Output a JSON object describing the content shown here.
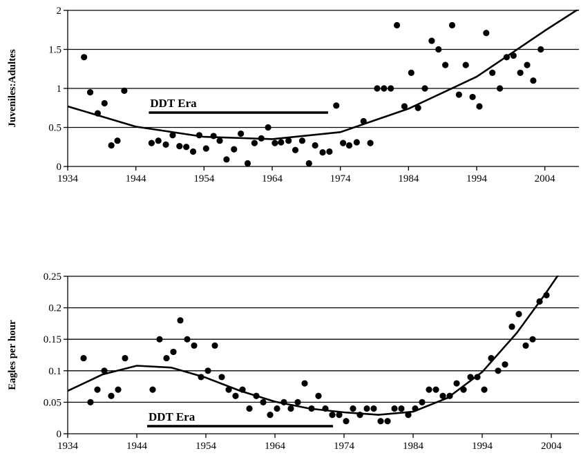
{
  "chart_data": [
    {
      "type": "scatter",
      "ylabel": "Juveniles:Adultes",
      "xlim": [
        1934,
        2009
      ],
      "ylim": [
        0,
        2
      ],
      "xticks": [
        1934,
        1944,
        1954,
        1964,
        1974,
        1984,
        1994,
        2004
      ],
      "yticks": [
        0,
        0.5,
        1,
        1.5,
        2
      ],
      "ytick_labels": [
        "0",
        "0.5",
        "1",
        "1.5",
        "2"
      ],
      "grid": "horizontal",
      "annotation": {
        "text": "DDT Era",
        "x_start": 1945.9,
        "x_end": 1972.2,
        "y": 0.69
      },
      "points": [
        [
          1936.4,
          1.4
        ],
        [
          1937.3,
          0.95
        ],
        [
          1938.4,
          0.68
        ],
        [
          1939.4,
          0.81
        ],
        [
          1940.4,
          0.27
        ],
        [
          1941.3,
          0.33
        ],
        [
          1942.3,
          0.97
        ],
        [
          1946.3,
          0.3
        ],
        [
          1947.3,
          0.33
        ],
        [
          1948.4,
          0.28
        ],
        [
          1949.4,
          0.4
        ],
        [
          1950.4,
          0.26
        ],
        [
          1951.4,
          0.25
        ],
        [
          1952.4,
          0.19
        ],
        [
          1953.3,
          0.4
        ],
        [
          1954.3,
          0.23
        ],
        [
          1955.4,
          0.39
        ],
        [
          1956.3,
          0.33
        ],
        [
          1957.3,
          0.09
        ],
        [
          1958.4,
          0.22
        ],
        [
          1959.4,
          0.42
        ],
        [
          1960.4,
          0.04
        ],
        [
          1961.4,
          0.3
        ],
        [
          1962.4,
          0.36
        ],
        [
          1963.4,
          0.5
        ],
        [
          1964.4,
          0.3
        ],
        [
          1965.3,
          0.31
        ],
        [
          1966.4,
          0.33
        ],
        [
          1967.4,
          0.21
        ],
        [
          1968.4,
          0.33
        ],
        [
          1969.4,
          0.04
        ],
        [
          1970.3,
          0.27
        ],
        [
          1971.4,
          0.18
        ],
        [
          1972.4,
          0.19
        ],
        [
          1973.4,
          0.78
        ],
        [
          1974.4,
          0.3
        ],
        [
          1975.3,
          0.27
        ],
        [
          1976.4,
          0.31
        ],
        [
          1977.4,
          0.58
        ],
        [
          1978.4,
          0.3
        ],
        [
          1979.4,
          1.0
        ],
        [
          1980.4,
          1.0
        ],
        [
          1981.4,
          1.0
        ],
        [
          1982.3,
          1.81
        ],
        [
          1983.4,
          0.77
        ],
        [
          1984.4,
          1.2
        ],
        [
          1985.4,
          0.75
        ],
        [
          1986.4,
          1.0
        ],
        [
          1987.4,
          1.61
        ],
        [
          1988.4,
          1.5
        ],
        [
          1989.4,
          1.3
        ],
        [
          1990.4,
          1.81
        ],
        [
          1991.4,
          0.92
        ],
        [
          1992.4,
          1.3
        ],
        [
          1993.4,
          0.89
        ],
        [
          1994.4,
          0.77
        ],
        [
          1995.4,
          1.71
        ],
        [
          1996.3,
          1.2
        ],
        [
          1997.4,
          1.0
        ],
        [
          1998.4,
          1.4
        ],
        [
          1999.4,
          1.42
        ],
        [
          2000.4,
          1.2
        ],
        [
          2001.4,
          1.3
        ],
        [
          2002.3,
          1.1
        ],
        [
          2003.4,
          1.5
        ]
      ],
      "trendline": [
        [
          1934,
          0.77
        ],
        [
          1944,
          0.51
        ],
        [
          1954,
          0.38
        ],
        [
          1964,
          0.35
        ],
        [
          1974,
          0.44
        ],
        [
          1984,
          0.74
        ],
        [
          1994,
          1.15
        ],
        [
          2004,
          1.74
        ],
        [
          2009,
          2.02
        ]
      ]
    },
    {
      "type": "scatter",
      "ylabel": "Eagles per hour",
      "xlim": [
        1934,
        2008
      ],
      "ylim": [
        0,
        0.25
      ],
      "xticks": [
        1934,
        1944,
        1954,
        1964,
        1974,
        1984,
        1994,
        2004
      ],
      "yticks": [
        0,
        0.05,
        0.1,
        0.15,
        0.2,
        0.25
      ],
      "ytick_labels": [
        "0",
        "0.05",
        "0.1",
        "0.15",
        "0.2",
        "0.25"
      ],
      "grid": "horizontal",
      "annotation": {
        "text": "DDT Era",
        "x_start": 1945.5,
        "x_end": 1972.4,
        "y": 0.012
      },
      "points": [
        [
          1936.3,
          0.12
        ],
        [
          1937.3,
          0.05
        ],
        [
          1938.3,
          0.07
        ],
        [
          1939.3,
          0.1
        ],
        [
          1940.3,
          0.06
        ],
        [
          1941.3,
          0.07
        ],
        [
          1942.3,
          0.12
        ],
        [
          1946.3,
          0.07
        ],
        [
          1947.3,
          0.15
        ],
        [
          1948.3,
          0.12
        ],
        [
          1949.3,
          0.13
        ],
        [
          1950.3,
          0.18
        ],
        [
          1951.3,
          0.15
        ],
        [
          1952.3,
          0.14
        ],
        [
          1953.3,
          0.09
        ],
        [
          1954.3,
          0.1
        ],
        [
          1955.3,
          0.14
        ],
        [
          1956.3,
          0.09
        ],
        [
          1957.3,
          0.07
        ],
        [
          1958.3,
          0.06
        ],
        [
          1959.3,
          0.07
        ],
        [
          1960.3,
          0.04
        ],
        [
          1961.3,
          0.06
        ],
        [
          1962.3,
          0.05
        ],
        [
          1963.3,
          0.03
        ],
        [
          1964.3,
          0.04
        ],
        [
          1965.3,
          0.05
        ],
        [
          1966.3,
          0.04
        ],
        [
          1967.3,
          0.05
        ],
        [
          1968.3,
          0.08
        ],
        [
          1969.3,
          0.04
        ],
        [
          1970.3,
          0.06
        ],
        [
          1971.3,
          0.04
        ],
        [
          1972.3,
          0.03
        ],
        [
          1973.3,
          0.03
        ],
        [
          1974.3,
          0.02
        ],
        [
          1975.3,
          0.04
        ],
        [
          1976.3,
          0.03
        ],
        [
          1977.3,
          0.04
        ],
        [
          1978.3,
          0.04
        ],
        [
          1979.3,
          0.02
        ],
        [
          1980.3,
          0.02
        ],
        [
          1981.3,
          0.04
        ],
        [
          1982.3,
          0.04
        ],
        [
          1983.3,
          0.03
        ],
        [
          1984.3,
          0.04
        ],
        [
          1985.3,
          0.05
        ],
        [
          1986.3,
          0.07
        ],
        [
          1987.3,
          0.07
        ],
        [
          1988.3,
          0.06
        ],
        [
          1989.3,
          0.06
        ],
        [
          1990.3,
          0.08
        ],
        [
          1991.3,
          0.07
        ],
        [
          1992.3,
          0.09
        ],
        [
          1993.3,
          0.09
        ],
        [
          1994.3,
          0.07
        ],
        [
          1995.3,
          0.12
        ],
        [
          1996.3,
          0.1
        ],
        [
          1997.3,
          0.11
        ],
        [
          1998.3,
          0.17
        ],
        [
          1999.3,
          0.19
        ],
        [
          2000.3,
          0.14
        ],
        [
          2001.3,
          0.15
        ],
        [
          2002.3,
          0.21
        ],
        [
          2003.3,
          0.22
        ]
      ],
      "trendline": [
        [
          1934,
          0.068
        ],
        [
          1939,
          0.094
        ],
        [
          1944,
          0.108
        ],
        [
          1949,
          0.105
        ],
        [
          1954,
          0.089
        ],
        [
          1959,
          0.068
        ],
        [
          1964,
          0.051
        ],
        [
          1969,
          0.04
        ],
        [
          1974,
          0.034
        ],
        [
          1979,
          0.03
        ],
        [
          1984,
          0.035
        ],
        [
          1989,
          0.057
        ],
        [
          1994,
          0.098
        ],
        [
          1999,
          0.16
        ],
        [
          2003,
          0.22
        ],
        [
          2005,
          0.252
        ]
      ]
    }
  ]
}
